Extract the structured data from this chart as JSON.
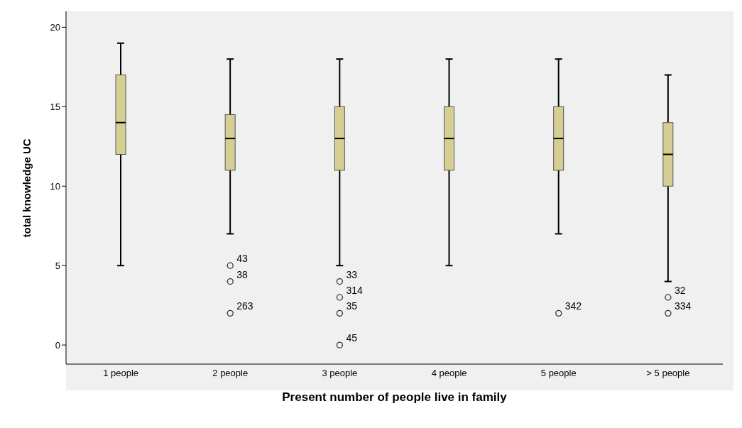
{
  "chart_data": {
    "type": "box",
    "xlabel": "Present number of people live in family",
    "ylabel": "total knowledge UC",
    "categories": [
      "1 people",
      "2 people",
      "3 people",
      "4 people",
      "5 people",
      "> 5 people"
    ],
    "color": "#d6cf94",
    "boxes": [
      {
        "low": 5,
        "q1": 12,
        "median": 14,
        "q3": 17,
        "high": 19
      },
      {
        "low": 7,
        "q1": 11,
        "median": 13,
        "q3": 14.5,
        "high": 18
      },
      {
        "low": 5,
        "q1": 11,
        "median": 13,
        "q3": 15,
        "high": 18
      },
      {
        "low": 5,
        "q1": 11,
        "median": 13,
        "q3": 15,
        "high": 18
      },
      {
        "low": 7,
        "q1": 11,
        "median": 13,
        "q3": 15,
        "high": 18
      },
      {
        "low": 4,
        "q1": 10,
        "median": 12,
        "q3": 14,
        "high": 17
      }
    ],
    "series": [
      {
        "type": "scatter",
        "color": "#333333",
        "x": [
          "2 people",
          "2 people",
          "2 people",
          "3 people",
          "3 people",
          "3 people",
          "3 people",
          "5 people",
          "> 5 people",
          "> 5 people"
        ],
        "values": [
          5,
          4,
          2,
          4,
          3,
          2,
          0,
          2,
          3,
          2
        ]
      }
    ],
    "marker": "circle",
    "ylim": [
      -1.2,
      21
    ],
    "yticks": [
      0,
      5,
      10,
      15,
      20
    ],
    "grid": false,
    "legend": false,
    "annotations": [
      {
        "text": "43",
        "x": "2 people",
        "y": 5
      },
      {
        "text": "38",
        "x": "2 people",
        "y": 4
      },
      {
        "text": "263",
        "x": "2 people",
        "y": 2
      },
      {
        "text": "33",
        "x": "3 people",
        "y": 4
      },
      {
        "text": "314",
        "x": "3 people",
        "y": 3
      },
      {
        "text": "35",
        "x": "3 people",
        "y": 2
      },
      {
        "text": "45",
        "x": "3 people",
        "y": 0
      },
      {
        "text": "342",
        "x": "5 people",
        "y": 2
      },
      {
        "text": "32",
        "x": "> 5 people",
        "y": 3
      },
      {
        "text": "334",
        "x": "> 5 people",
        "y": 2
      }
    ]
  }
}
